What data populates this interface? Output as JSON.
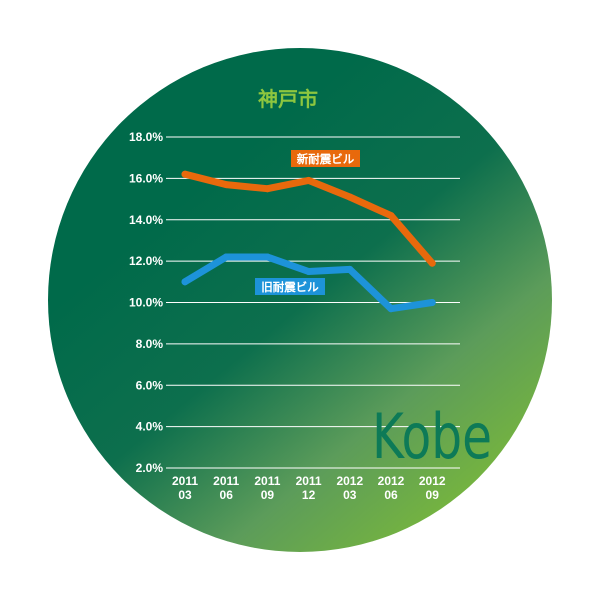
{
  "colors": {
    "background_top": "#006a4a",
    "background_bottom": "#7fbd35",
    "grid": "#ffffff",
    "new_series": "#e8690c",
    "old_series": "#1d93d9",
    "title": "#8dc63f",
    "city_word": "#0d7a57"
  },
  "chart_data": {
    "type": "line",
    "title": "神戸市",
    "watermark": "Kobe",
    "categories": [
      [
        "2011",
        "03"
      ],
      [
        "2011",
        "06"
      ],
      [
        "2011",
        "09"
      ],
      [
        "2011",
        "12"
      ],
      [
        "2012",
        "03"
      ],
      [
        "2012",
        "06"
      ],
      [
        "2012",
        "09"
      ]
    ],
    "series": [
      {
        "name": "新耐震ビル",
        "color": "#e8690c",
        "values": [
          16.2,
          15.7,
          15.5,
          15.9,
          15.1,
          14.2,
          11.9
        ]
      },
      {
        "name": "旧耐震ビル",
        "color": "#1d93d9",
        "values": [
          11.0,
          12.2,
          12.2,
          11.5,
          11.6,
          9.7,
          10.0
        ]
      }
    ],
    "y_ticks": [
      "2.0%",
      "4.0%",
      "6.0%",
      "8.0%",
      "10.0%",
      "12.0%",
      "14.0%",
      "16.0%",
      "18.0%"
    ],
    "ylim": [
      2.0,
      18.0
    ],
    "grid": true,
    "legend_placement": "inline labels"
  }
}
